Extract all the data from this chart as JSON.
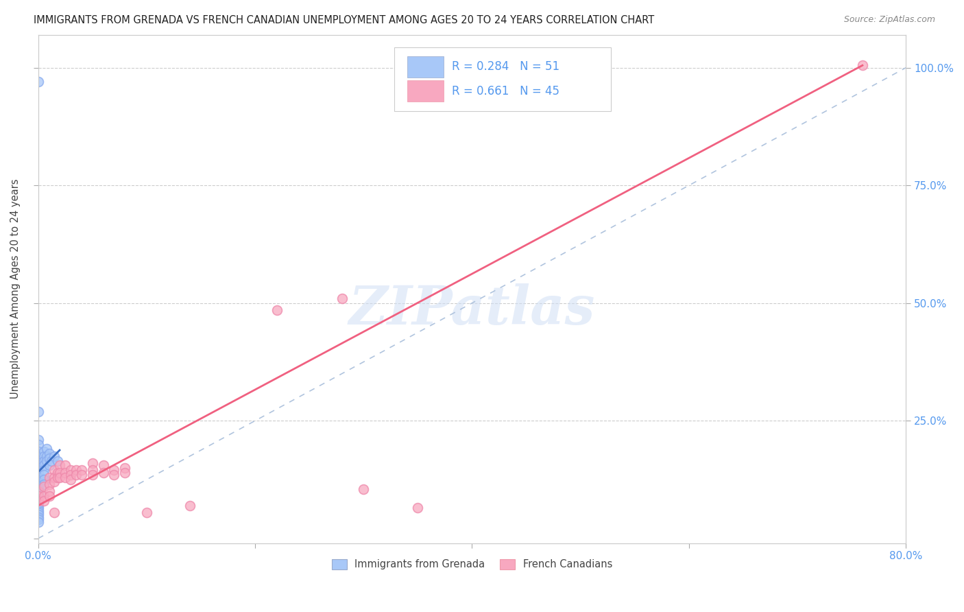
{
  "title": "IMMIGRANTS FROM GRENADA VS FRENCH CANADIAN UNEMPLOYMENT AMONG AGES 20 TO 24 YEARS CORRELATION CHART",
  "source": "Source: ZipAtlas.com",
  "ylabel": "Unemployment Among Ages 20 to 24 years",
  "xlim": [
    0,
    0.8
  ],
  "ylim": [
    -0.01,
    1.07
  ],
  "legend_R_blue": "0.284",
  "legend_N_blue": "51",
  "legend_R_pink": "0.661",
  "legend_N_pink": "45",
  "blue_color": "#a8c8f8",
  "pink_color": "#f8a8c0",
  "blue_line_color": "#3a6fc4",
  "pink_line_color": "#f06080",
  "diagonal_color": "#b0c4de",
  "watermark": "ZIPatlas",
  "tick_color": "#5599ee",
  "blue_points": [
    [
      0.0,
      0.27
    ],
    [
      0.0,
      0.21
    ],
    [
      0.0,
      0.2
    ],
    [
      0.0,
      0.185
    ],
    [
      0.0,
      0.175
    ],
    [
      0.0,
      0.165
    ],
    [
      0.0,
      0.16
    ],
    [
      0.0,
      0.155
    ],
    [
      0.0,
      0.15
    ],
    [
      0.0,
      0.145
    ],
    [
      0.0,
      0.14
    ],
    [
      0.0,
      0.135
    ],
    [
      0.0,
      0.13
    ],
    [
      0.0,
      0.125
    ],
    [
      0.0,
      0.12
    ],
    [
      0.0,
      0.115
    ],
    [
      0.0,
      0.11
    ],
    [
      0.0,
      0.105
    ],
    [
      0.0,
      0.1
    ],
    [
      0.0,
      0.095
    ],
    [
      0.0,
      0.09
    ],
    [
      0.0,
      0.085
    ],
    [
      0.0,
      0.08
    ],
    [
      0.0,
      0.075
    ],
    [
      0.0,
      0.07
    ],
    [
      0.0,
      0.065
    ],
    [
      0.0,
      0.06
    ],
    [
      0.0,
      0.055
    ],
    [
      0.0,
      0.05
    ],
    [
      0.0,
      0.045
    ],
    [
      0.0,
      0.04
    ],
    [
      0.005,
      0.185
    ],
    [
      0.005,
      0.175
    ],
    [
      0.005,
      0.165
    ],
    [
      0.005,
      0.155
    ],
    [
      0.005,
      0.145
    ],
    [
      0.005,
      0.135
    ],
    [
      0.005,
      0.125
    ],
    [
      0.005,
      0.115
    ],
    [
      0.008,
      0.19
    ],
    [
      0.008,
      0.175
    ],
    [
      0.008,
      0.165
    ],
    [
      0.01,
      0.18
    ],
    [
      0.01,
      0.17
    ],
    [
      0.01,
      0.155
    ],
    [
      0.012,
      0.165
    ],
    [
      0.015,
      0.175
    ],
    [
      0.018,
      0.165
    ],
    [
      0.0,
      0.075
    ],
    [
      0.0,
      0.035
    ],
    [
      0.0,
      0.97
    ]
  ],
  "pink_points": [
    [
      0.0,
      0.1
    ],
    [
      0.0,
      0.09
    ],
    [
      0.0,
      0.08
    ],
    [
      0.005,
      0.11
    ],
    [
      0.005,
      0.09
    ],
    [
      0.005,
      0.08
    ],
    [
      0.01,
      0.13
    ],
    [
      0.01,
      0.115
    ],
    [
      0.01,
      0.1
    ],
    [
      0.01,
      0.09
    ],
    [
      0.015,
      0.145
    ],
    [
      0.015,
      0.13
    ],
    [
      0.015,
      0.12
    ],
    [
      0.018,
      0.14
    ],
    [
      0.018,
      0.13
    ],
    [
      0.02,
      0.155
    ],
    [
      0.02,
      0.14
    ],
    [
      0.02,
      0.13
    ],
    [
      0.025,
      0.155
    ],
    [
      0.025,
      0.14
    ],
    [
      0.025,
      0.13
    ],
    [
      0.03,
      0.145
    ],
    [
      0.03,
      0.135
    ],
    [
      0.03,
      0.125
    ],
    [
      0.035,
      0.145
    ],
    [
      0.035,
      0.135
    ],
    [
      0.04,
      0.145
    ],
    [
      0.04,
      0.135
    ],
    [
      0.05,
      0.16
    ],
    [
      0.05,
      0.145
    ],
    [
      0.05,
      0.135
    ],
    [
      0.06,
      0.155
    ],
    [
      0.06,
      0.14
    ],
    [
      0.07,
      0.145
    ],
    [
      0.07,
      0.135
    ],
    [
      0.08,
      0.15
    ],
    [
      0.08,
      0.14
    ],
    [
      0.1,
      0.055
    ],
    [
      0.14,
      0.07
    ],
    [
      0.28,
      0.51
    ],
    [
      0.22,
      0.485
    ],
    [
      0.76,
      1.005
    ],
    [
      0.015,
      0.055
    ],
    [
      0.3,
      0.105
    ],
    [
      0.35,
      0.065
    ]
  ],
  "blue_line_x": [
    0.0,
    0.02
  ],
  "blue_line_slope": 0.5,
  "blue_line_intercept": 0.115,
  "pink_line_x0": 0.0,
  "pink_line_x1": 0.76,
  "pink_line_y0": 0.07,
  "pink_line_y1": 1.005
}
